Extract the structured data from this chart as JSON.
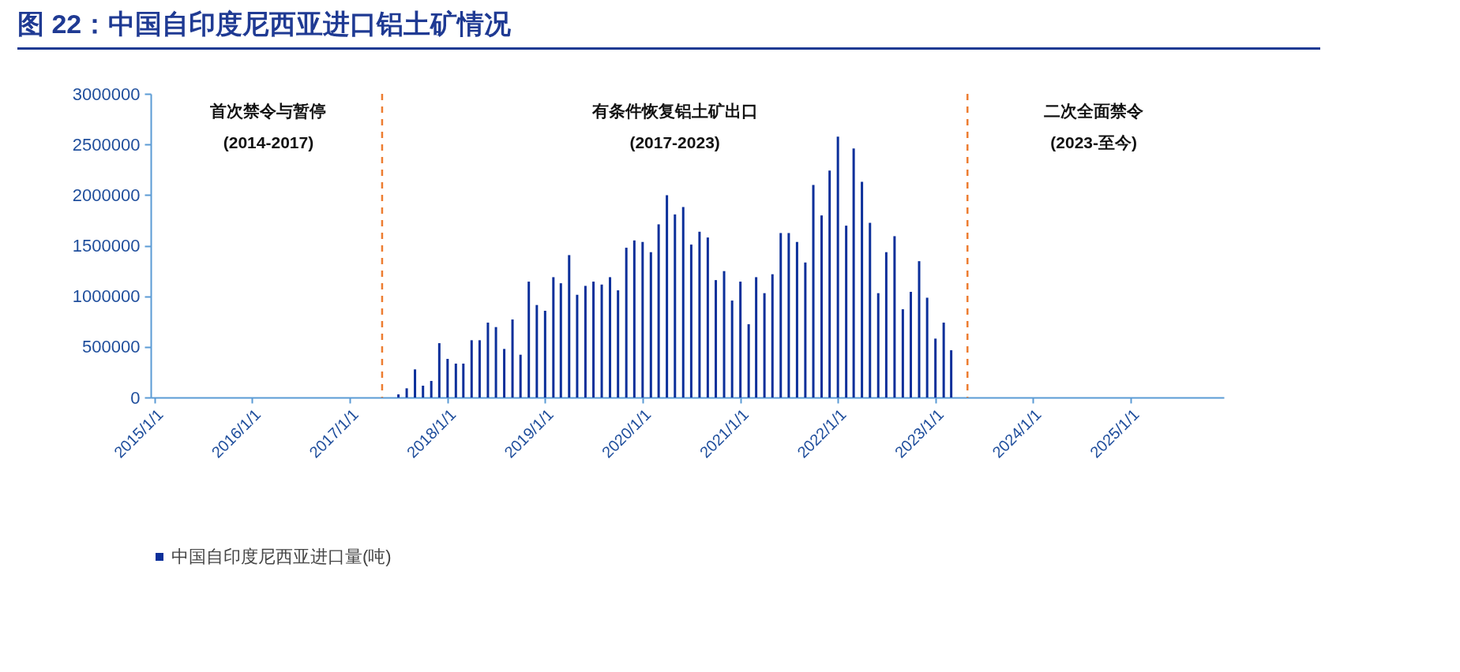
{
  "chart_data": {
    "type": "bar",
    "title": "图 22：中国自印度尼西亚进口铝土矿情况",
    "x": [
      "2017-07",
      "2017-08",
      "2017-09",
      "2017-10",
      "2017-11",
      "2017-12",
      "2018-01",
      "2018-02",
      "2018-03",
      "2018-04",
      "2018-05",
      "2018-06",
      "2018-07",
      "2018-08",
      "2018-09",
      "2018-10",
      "2018-11",
      "2018-12",
      "2019-01",
      "2019-02",
      "2019-03",
      "2019-04",
      "2019-05",
      "2019-06",
      "2019-07",
      "2019-08",
      "2019-09",
      "2019-10",
      "2019-11",
      "2019-12",
      "2020-01",
      "2020-02",
      "2020-03",
      "2020-04",
      "2020-05",
      "2020-06",
      "2020-07",
      "2020-08",
      "2020-09",
      "2020-10",
      "2020-11",
      "2020-12",
      "2021-01",
      "2021-02",
      "2021-03",
      "2021-04",
      "2021-05",
      "2021-06",
      "2021-07",
      "2021-08",
      "2021-09",
      "2021-10",
      "2021-11",
      "2021-12",
      "2022-01",
      "2022-02",
      "2022-03",
      "2022-04",
      "2022-05",
      "2022-06",
      "2022-07",
      "2022-08",
      "2022-09",
      "2022-10",
      "2022-11",
      "2022-12",
      "2023-01",
      "2023-02",
      "2023-03"
    ],
    "series": [
      {
        "name": "中国自印度尼西亚进口量(吨)",
        "color": "#0b2f9a",
        "values": [
          31000,
          91000,
          278000,
          117000,
          164000,
          537000,
          382000,
          335000,
          335000,
          566000,
          566000,
          740000,
          696000,
          480000,
          771000,
          423000,
          1145000,
          914000,
          857000,
          1189000,
          1129000,
          1407000,
          1015000,
          1103000,
          1145000,
          1116000,
          1189000,
          1059000,
          1480000,
          1552000,
          1537000,
          1436000,
          1711000,
          1999000,
          1809000,
          1882000,
          1511000,
          1638000,
          1581000,
          1160000,
          1249000,
          958000,
          1145000,
          724000,
          1189000,
          1031000,
          1218000,
          1625000,
          1625000,
          1537000,
          1334000,
          2100000,
          1799000,
          2243000,
          2578000,
          1698000,
          2461000,
          2131000,
          1726000,
          1031000,
          1436000,
          1594000,
          872000,
          1044000,
          1347000,
          986000,
          582000,
          740000,
          467000
        ]
      }
    ],
    "xlim": [
      "2015-01",
      "2025-12"
    ],
    "xticks": [
      {
        "value": "2015-01-01",
        "label": "2015/1/1"
      },
      {
        "value": "2016-01-01",
        "label": "2016/1/1"
      },
      {
        "value": "2017-01-01",
        "label": "2017/1/1"
      },
      {
        "value": "2018-01-01",
        "label": "2018/1/1"
      },
      {
        "value": "2019-01-01",
        "label": "2019/1/1"
      },
      {
        "value": "2020-01-01",
        "label": "2020/1/1"
      },
      {
        "value": "2021-01-01",
        "label": "2021/1/1"
      },
      {
        "value": "2022-01-01",
        "label": "2022/1/1"
      },
      {
        "value": "2023-01-01",
        "label": "2023/1/1"
      },
      {
        "value": "2024-01-01",
        "label": "2024/1/1"
      },
      {
        "value": "2025-01-01",
        "label": "2025/1/1"
      }
    ],
    "ylim": [
      0,
      3000000
    ],
    "yticks": [
      0,
      500000,
      1000000,
      1500000,
      2000000,
      2500000,
      3000000
    ],
    "ref_lines": [
      {
        "axis": "x",
        "value": "2017-05",
        "color": "#ed7d31",
        "line_style": "dashed"
      },
      {
        "axis": "x",
        "value": "2023-05",
        "color": "#ed7d31",
        "line_style": "dashed"
      }
    ],
    "annotations": [
      "首次禁令与暂停\n(2014-2017)",
      "有条件恢复铝土矿出口\n(2017-2023)",
      "二次全面禁令\n(2023-至今)"
    ],
    "legend": "bottom",
    "grid": false
  }
}
